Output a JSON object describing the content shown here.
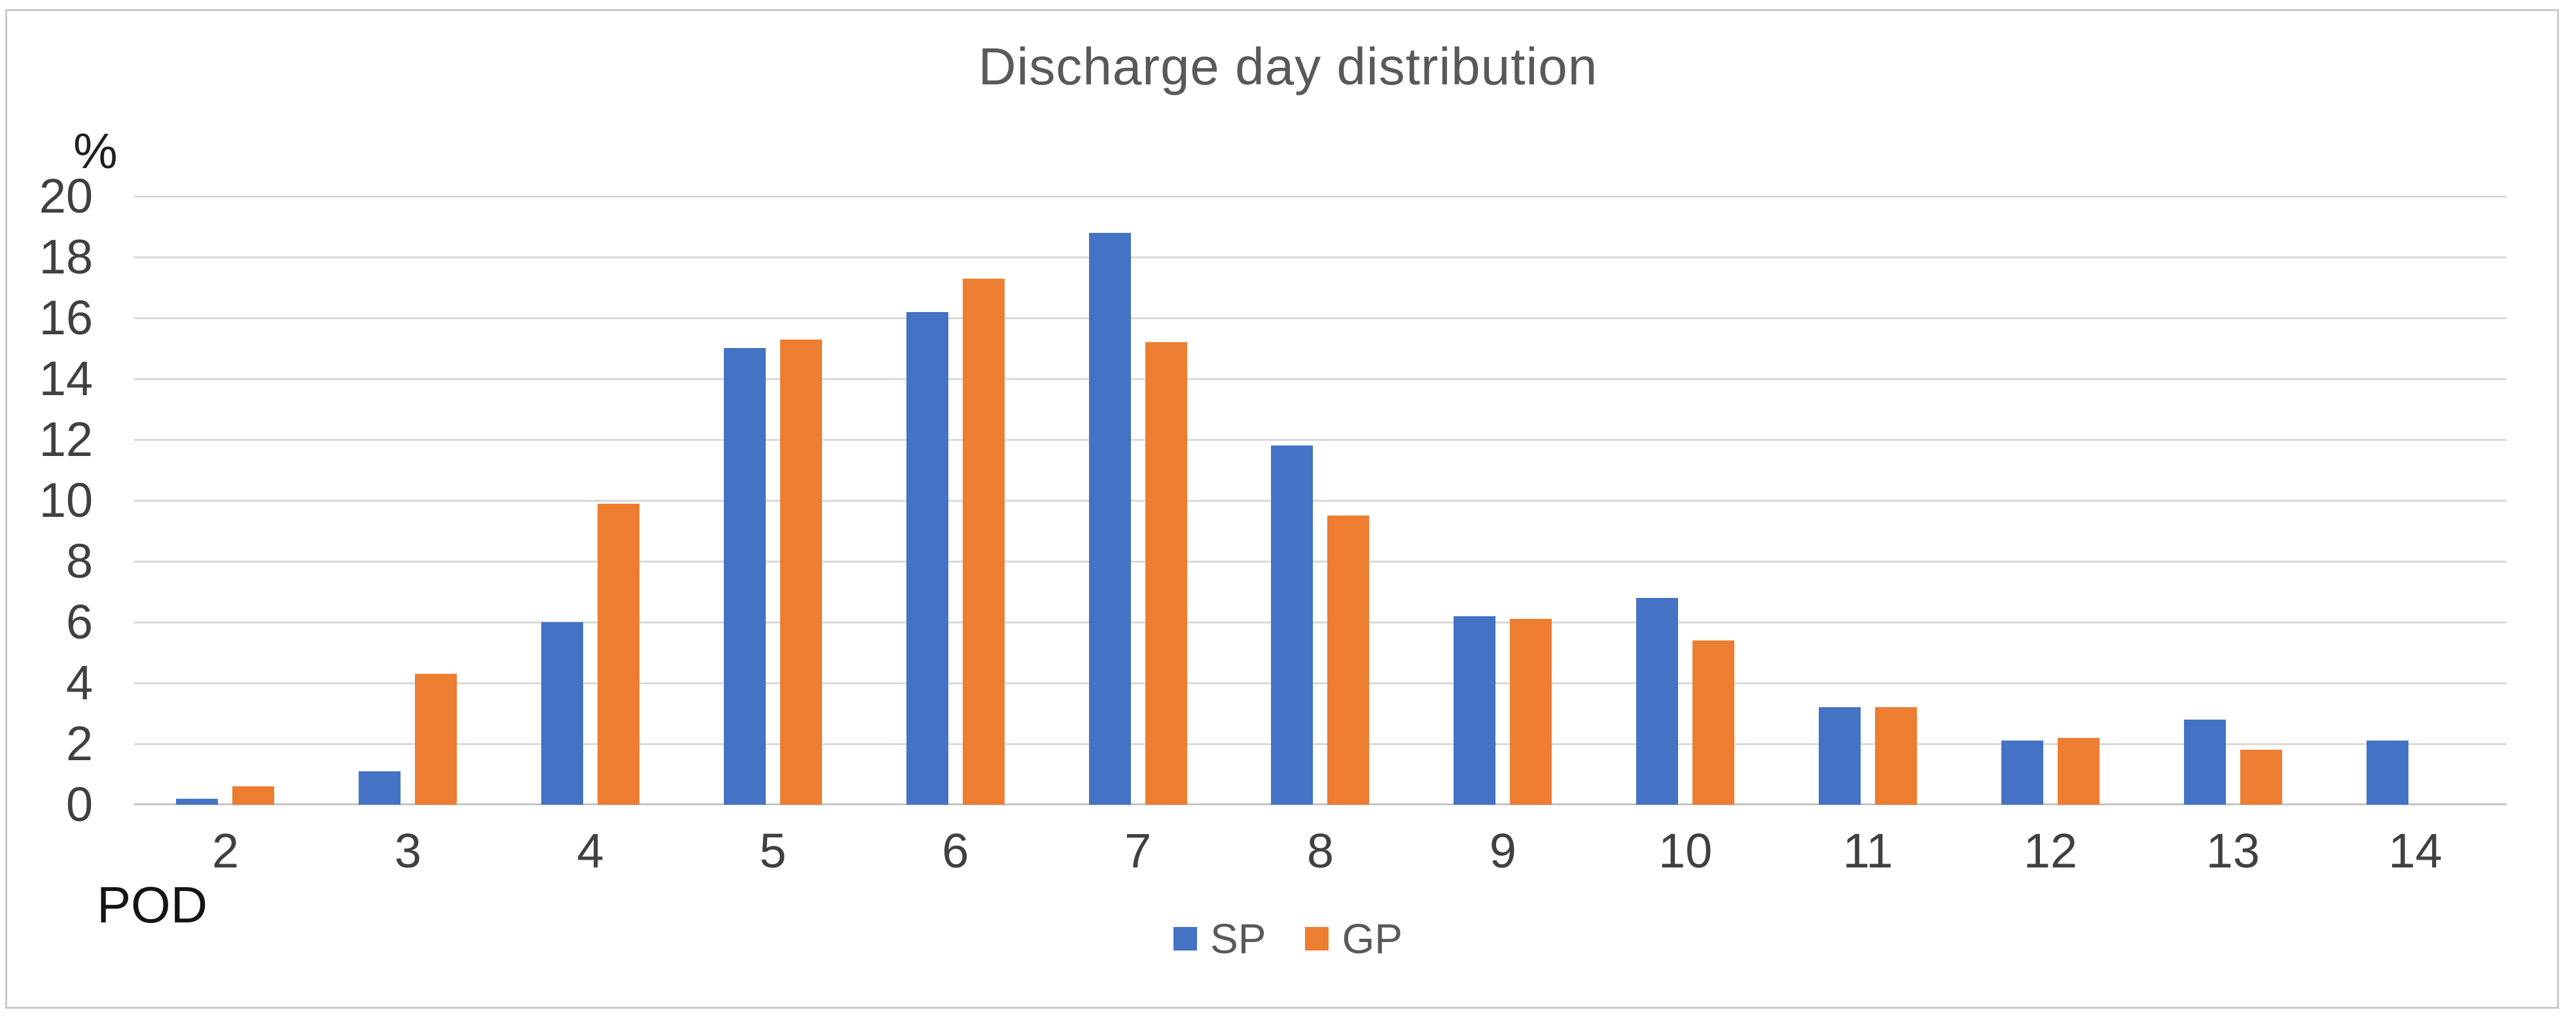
{
  "chart_data": {
    "type": "bar",
    "title": "Discharge day distribution",
    "ylabel": "%",
    "xlabel": "POD",
    "ylim": [
      0,
      20
    ],
    "ytick_step": 2,
    "grid": true,
    "legend_position": "bottom-center",
    "categories": [
      "2",
      "3",
      "4",
      "5",
      "6",
      "7",
      "8",
      "9",
      "10",
      "11",
      "12",
      "13",
      "14"
    ],
    "series": [
      {
        "name": "SP",
        "color": "#4472C4",
        "values": [
          0.2,
          1.1,
          6.0,
          15.0,
          16.2,
          18.8,
          11.8,
          6.2,
          6.8,
          3.2,
          2.1,
          2.8,
          2.1
        ]
      },
      {
        "name": "GP",
        "color": "#ED7D31",
        "values": [
          0.6,
          4.3,
          9.9,
          15.3,
          17.3,
          15.2,
          9.5,
          6.1,
          5.4,
          3.2,
          2.2,
          1.8,
          0
        ]
      }
    ],
    "colors": {
      "gridline": "#D9D9D9",
      "axis_line": "#C4C4C4",
      "title_text": "#595959",
      "tick_text": "#404040",
      "border": "#C9C9C9"
    }
  }
}
